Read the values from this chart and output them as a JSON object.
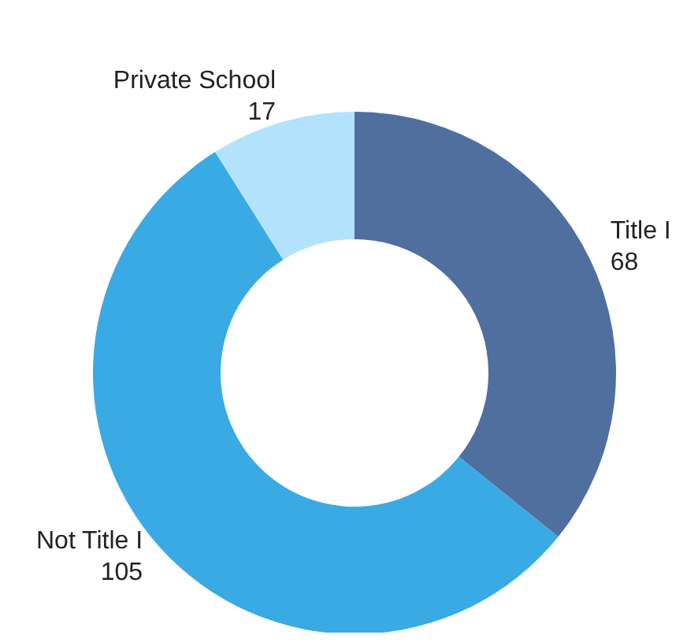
{
  "chart_data": {
    "type": "donut",
    "categories": [
      "Title I",
      "Not Title I",
      "Private School"
    ],
    "values": [
      68,
      105,
      17
    ],
    "colors": [
      "#4f6f9f",
      "#3aaae4",
      "#b3e3fc"
    ],
    "data_labels": true
  }
}
